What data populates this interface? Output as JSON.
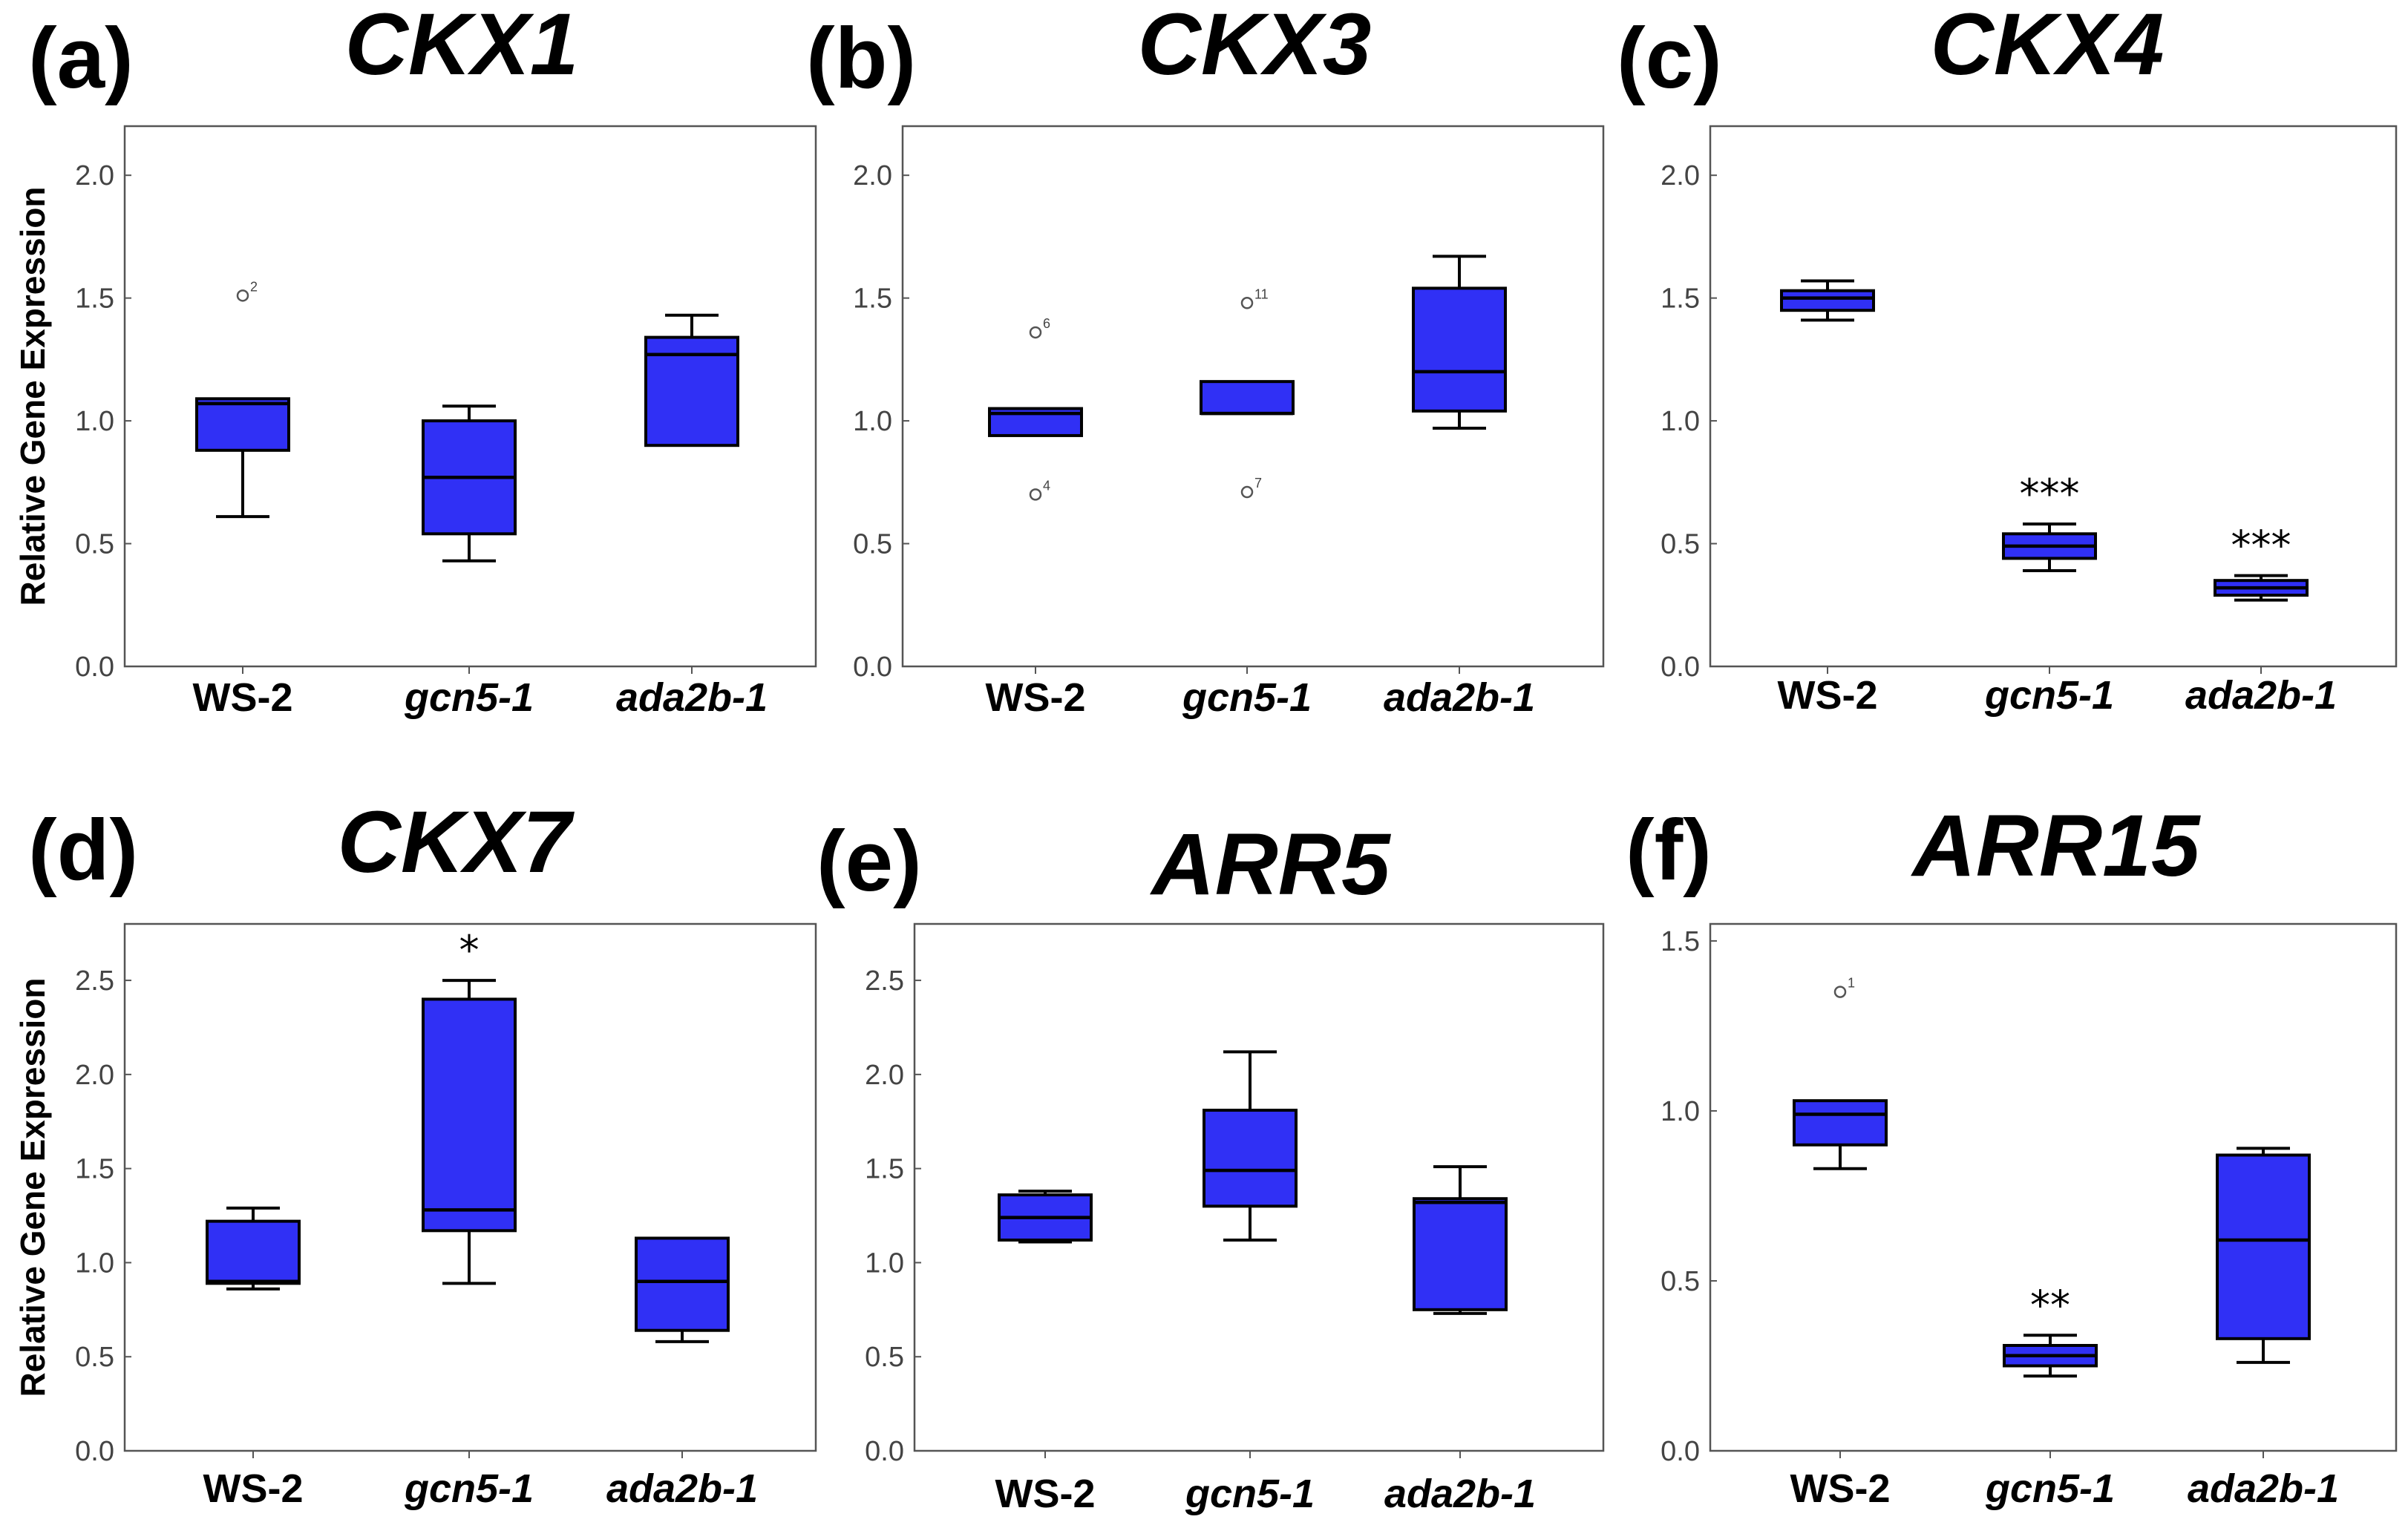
{
  "figure": {
    "y_axis_label": "Relative Gene Expression",
    "box_color": "#3030F5",
    "line_color": "#000000"
  },
  "chart_data": [
    {
      "type": "box",
      "panel": "(a)",
      "title": "CKX1",
      "ylabel": "Relative Gene Expression",
      "ylim": [
        0,
        2.2
      ],
      "yticks": [
        "0.0",
        "0.5",
        "1.0",
        "1.5",
        "2.0"
      ],
      "categories": [
        "WS-2",
        "gcn5-1",
        "ada2b-1"
      ],
      "boxes": [
        {
          "min": 0.61,
          "q1": 0.88,
          "median": 1.07,
          "q3": 1.09,
          "max": 1.09,
          "outliers": [
            {
              "value": 1.51,
              "label": "2"
            }
          ],
          "sig": ""
        },
        {
          "min": 0.43,
          "q1": 0.54,
          "median": 0.77,
          "q3": 1.0,
          "max": 1.06,
          "outliers": [],
          "sig": ""
        },
        {
          "min": 0.9,
          "q1": 0.9,
          "median": 1.27,
          "q3": 1.34,
          "max": 1.43,
          "outliers": [],
          "sig": ""
        }
      ]
    },
    {
      "type": "box",
      "panel": "(b)",
      "title": "CKX3",
      "ylabel": "",
      "ylim": [
        0,
        2.2
      ],
      "yticks": [
        "0.0",
        "0.5",
        "1.0",
        "1.5",
        "2.0"
      ],
      "categories": [
        "WS-2",
        "gcn5-1",
        "ada2b-1"
      ],
      "boxes": [
        {
          "min": 0.94,
          "q1": 0.94,
          "median": 1.03,
          "q3": 1.05,
          "max": 1.05,
          "outliers": [
            {
              "value": 1.36,
              "label": "6"
            },
            {
              "value": 0.7,
              "label": "4"
            }
          ],
          "sig": ""
        },
        {
          "min": 1.03,
          "q1": 1.03,
          "median": 1.03,
          "q3": 1.16,
          "max": 1.16,
          "outliers": [
            {
              "value": 1.48,
              "label": "11"
            },
            {
              "value": 0.71,
              "label": "7"
            }
          ],
          "sig": ""
        },
        {
          "min": 0.97,
          "q1": 1.04,
          "median": 1.2,
          "q3": 1.54,
          "max": 1.67,
          "outliers": [],
          "sig": ""
        }
      ]
    },
    {
      "type": "box",
      "panel": "(c)",
      "title": "CKX4",
      "ylabel": "",
      "ylim": [
        0,
        2.2
      ],
      "yticks": [
        "0.0",
        "0.5",
        "1.0",
        "1.5",
        "2.0"
      ],
      "categories": [
        "WS-2",
        "gcn5-1",
        "ada2b-1"
      ],
      "boxes": [
        {
          "min": 1.41,
          "q1": 1.45,
          "median": 1.5,
          "q3": 1.53,
          "max": 1.57,
          "outliers": [],
          "sig": ""
        },
        {
          "min": 0.39,
          "q1": 0.44,
          "median": 0.49,
          "q3": 0.54,
          "max": 0.58,
          "outliers": [],
          "sig": "***"
        },
        {
          "min": 0.27,
          "q1": 0.29,
          "median": 0.32,
          "q3": 0.35,
          "max": 0.37,
          "outliers": [],
          "sig": "***"
        }
      ]
    },
    {
      "type": "box",
      "panel": "(d)",
      "title": "CKX7",
      "ylabel": "Relative Gene Expression",
      "ylim": [
        0,
        2.8
      ],
      "yticks": [
        "0.0",
        "0.5",
        "1.0",
        "1.5",
        "2.0",
        "2.5"
      ],
      "categories": [
        "WS-2",
        "gcn5-1",
        "ada2b-1"
      ],
      "boxes": [
        {
          "min": 0.86,
          "q1": 0.89,
          "median": 0.9,
          "q3": 1.22,
          "max": 1.29,
          "outliers": [],
          "sig": ""
        },
        {
          "min": 0.89,
          "q1": 1.17,
          "median": 1.28,
          "q3": 2.4,
          "max": 2.5,
          "outliers": [],
          "sig": "*"
        },
        {
          "min": 0.58,
          "q1": 0.64,
          "median": 0.9,
          "q3": 1.13,
          "max": 1.13,
          "outliers": [],
          "sig": ""
        }
      ]
    },
    {
      "type": "box",
      "panel": "(e)",
      "title": "ARR5",
      "ylabel": "",
      "ylim": [
        0,
        2.8
      ],
      "yticks": [
        "0.0",
        "0.5",
        "1.0",
        "1.5",
        "2.0",
        "2.5"
      ],
      "categories": [
        "WS-2",
        "gcn5-1",
        "ada2b-1"
      ],
      "boxes": [
        {
          "min": 1.11,
          "q1": 1.12,
          "median": 1.24,
          "q3": 1.36,
          "max": 1.38,
          "outliers": [],
          "sig": ""
        },
        {
          "min": 1.12,
          "q1": 1.3,
          "median": 1.49,
          "q3": 1.81,
          "max": 2.12,
          "outliers": [],
          "sig": ""
        },
        {
          "min": 0.73,
          "q1": 0.75,
          "median": 1.32,
          "q3": 1.34,
          "max": 1.51,
          "outliers": [],
          "sig": ""
        }
      ]
    },
    {
      "type": "box",
      "panel": "(f)",
      "title": "ARR15",
      "ylabel": "",
      "ylim": [
        0,
        1.55
      ],
      "yticks": [
        "0.0",
        "0.5",
        "1.0",
        "1.5"
      ],
      "categories": [
        "WS-2",
        "gcn5-1",
        "ada2b-1"
      ],
      "boxes": [
        {
          "min": 0.83,
          "q1": 0.9,
          "median": 0.99,
          "q3": 1.03,
          "max": 1.03,
          "outliers": [
            {
              "value": 1.35,
              "label": "1"
            }
          ],
          "sig": ""
        },
        {
          "min": 0.22,
          "q1": 0.25,
          "median": 0.28,
          "q3": 0.31,
          "max": 0.34,
          "outliers": [],
          "sig": "**"
        },
        {
          "min": 0.26,
          "q1": 0.33,
          "median": 0.62,
          "q3": 0.87,
          "max": 0.89,
          "outliers": [],
          "sig": ""
        }
      ]
    }
  ]
}
